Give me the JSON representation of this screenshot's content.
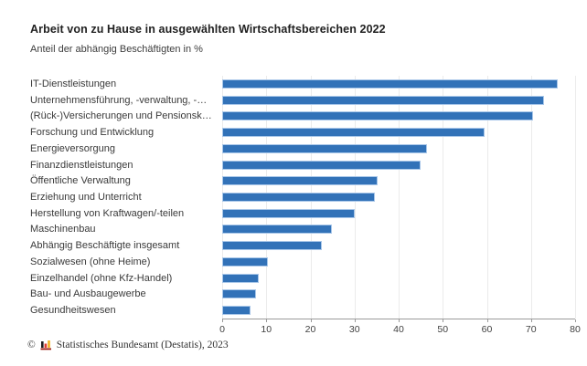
{
  "header": {
    "title": "Arbeit von zu Hause in ausgewählten Wirtschaftsbereichen 2022",
    "subtitle": "Anteil der abhängig Beschäftigten in %"
  },
  "chart_data": {
    "type": "bar",
    "orientation": "horizontal",
    "title": "Arbeit von zu Hause in ausgewählten Wirtschaftsbereichen 2022",
    "subtitle": "Anteil der abhängig Beschäftigten in %",
    "categories": [
      "IT-Dienstleistungen",
      "Unternehmensführung, -verwaltung, -…",
      "(Rück-)Versicherungen und Pensionsk…",
      "Forschung und Entwicklung",
      "Energieversorgung",
      "Finanzdienstleistungen",
      "Öffentliche Verwaltung",
      "Erziehung und Unterricht",
      "Herstellung von Kraftwagen/-teilen",
      "Maschinenbau",
      "Abhängig Beschäftigte insgesamt",
      "Sozialwesen (ohne Heime)",
      "Einzelhandel (ohne Kfz-Handel)",
      "Bau- und Ausbaugewerbe",
      "Gesundheitswesen"
    ],
    "values": [
      76,
      73,
      70.4,
      59.5,
      46.4,
      44.9,
      35.3,
      34.6,
      30,
      24.8,
      22.6,
      10.3,
      8.3,
      7.7,
      6.4
    ],
    "unit": "%",
    "xlim": [
      0,
      80
    ],
    "x_ticks": [
      0,
      10,
      20,
      30,
      40,
      50,
      60,
      70,
      80
    ],
    "grid": true,
    "legend": "none",
    "bar_color": "#3272b8",
    "bar_border_color": "#a9c7e9"
  },
  "footer": {
    "copyright": "©",
    "logo_icon": "destatis-bar-chart-logo",
    "logo_colors": {
      "black": "#1f1f1f",
      "red": "#e03c31",
      "gold": "#f2b01e",
      "base": "#9e1b10"
    },
    "source": "Statistisches Bundesamt (Destatis), 2023"
  }
}
